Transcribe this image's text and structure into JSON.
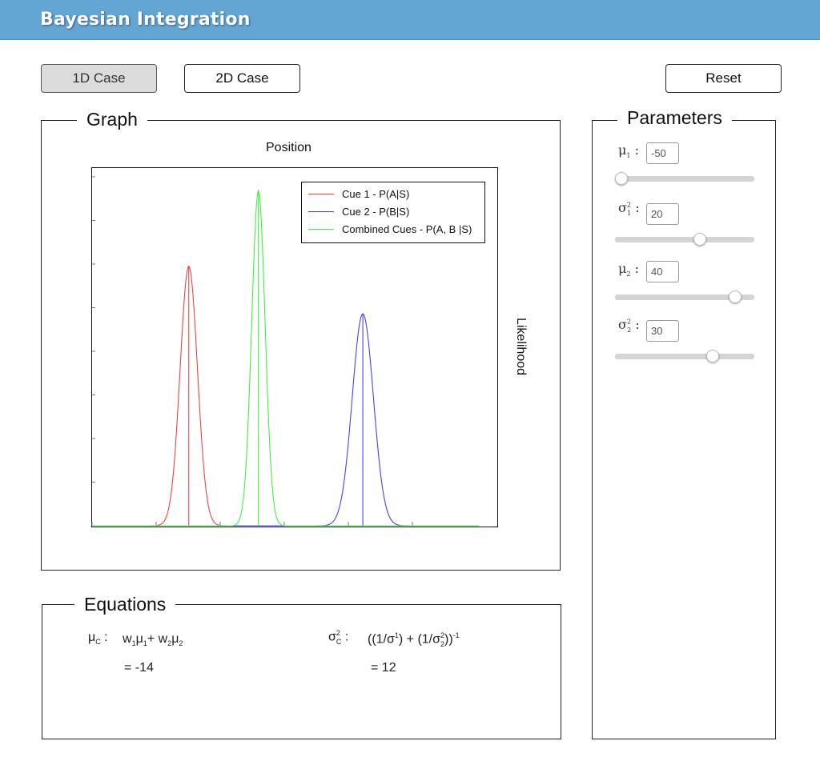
{
  "app": {
    "title": "Bayesian Integration"
  },
  "toolbar": {
    "tab_1d": "1D Case",
    "tab_2d": "2D Case",
    "reset": "Reset"
  },
  "graph": {
    "panel_title": "Graph",
    "xlabel": "Position",
    "ylabel": "Likelihood",
    "legend": [
      {
        "label": "Cue 1 - P(A|S)",
        "color": "#ee4444"
      },
      {
        "label": "Cue 2 - P(B|S)",
        "color": "#4444ee"
      },
      {
        "label": "Combined Cues - P(A, B |S)",
        "color": "#44ee44"
      }
    ]
  },
  "chart_data": {
    "type": "line",
    "xlim": [
      -100,
      100
    ],
    "series": [
      {
        "name": "Cue 1 - P(A|S)",
        "mean": -50,
        "variance": 20,
        "color": "#ee4444"
      },
      {
        "name": "Cue 2 - P(B|S)",
        "mean": 40,
        "variance": 30,
        "color": "#4444ee"
      },
      {
        "name": "Combined Cues - P(A, B |S)",
        "mean": -14,
        "variance": 12,
        "color": "#44ee44"
      }
    ],
    "xlabel": "Position",
    "ylabel": "Likelihood",
    "legend": "top-right",
    "grid": false
  },
  "parameters": {
    "panel_title": "Parameters",
    "mu1": {
      "symbol": "μ",
      "sub": "1",
      "value": "-50",
      "slider": 0
    },
    "sigma1": {
      "symbol": "σ",
      "sup": "2",
      "sub": "1",
      "value": "20",
      "slider": 0.62
    },
    "mu2": {
      "symbol": "μ",
      "sub": "2",
      "value": "40",
      "slider": 0.9
    },
    "sigma2": {
      "symbol": "σ",
      "sup": "2",
      "sub": "2",
      "value": "30",
      "slider": 0.72
    },
    "colon": ":"
  },
  "equations": {
    "panel_title": "Equations",
    "mu_c_symbol": "μ",
    "mu_c_sub": "C",
    "colon": ":",
    "mu_c_formula": {
      "w": "w",
      "mu": "μ",
      "plus": "+",
      "s1": "1",
      "s2": "2"
    },
    "mu_c_result": "= -14",
    "sigma_c_symbol": "σ",
    "sigma_c_sup": "2",
    "sigma_c_sub": "C",
    "sigma_c_formula": {
      "open": "((1/σ",
      "mid": ") + (1/σ",
      "close": "))",
      "sup1": "1",
      "sup2": "2",
      "sub2": "2",
      "exp": "-1"
    },
    "sigma_c_result": "= 12"
  }
}
